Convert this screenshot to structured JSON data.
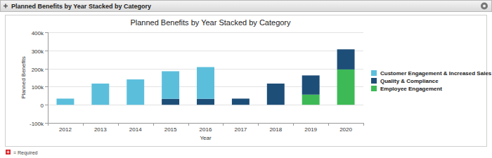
{
  "panel": {
    "header": "Planned Benefits by Year Stacked by Category",
    "footer": "= Required"
  },
  "chart_data": {
    "type": "bar",
    "title": "Planned Benefits by Year Stacked by Category",
    "x_label": "Year",
    "y_label": "Planned Benefits",
    "categories": [
      "2012",
      "2013",
      "2014",
      "2015",
      "2016",
      "2017",
      "2018",
      "2019",
      "2020"
    ],
    "series": [
      {
        "name": "Customer Engagement & Increased Sales",
        "color": "#5bbfdc",
        "values": [
          34000,
          117000,
          140000,
          152000,
          175000,
          0,
          0,
          0,
          0
        ]
      },
      {
        "name": "Quality & Compliance",
        "color": "#1d4e78",
        "values": [
          0,
          0,
          0,
          33000,
          33000,
          34000,
          117000,
          106000,
          111000
        ]
      },
      {
        "name": "Employee Engagement",
        "color": "#3dba55",
        "values": [
          0,
          0,
          0,
          0,
          0,
          0,
          0,
          56000,
          195000
        ]
      }
    ],
    "ylim": [
      -100000,
      400000
    ],
    "yticks": [
      {
        "value": -100000,
        "label": "-100k"
      },
      0,
      {
        "value": 100000,
        "label": "100k"
      },
      {
        "value": 200000,
        "label": "200k"
      },
      {
        "value": 300000,
        "label": "300k"
      },
      {
        "value": 400000,
        "label": "400k"
      }
    ],
    "grid": true,
    "stacked": true,
    "legend": "right"
  }
}
